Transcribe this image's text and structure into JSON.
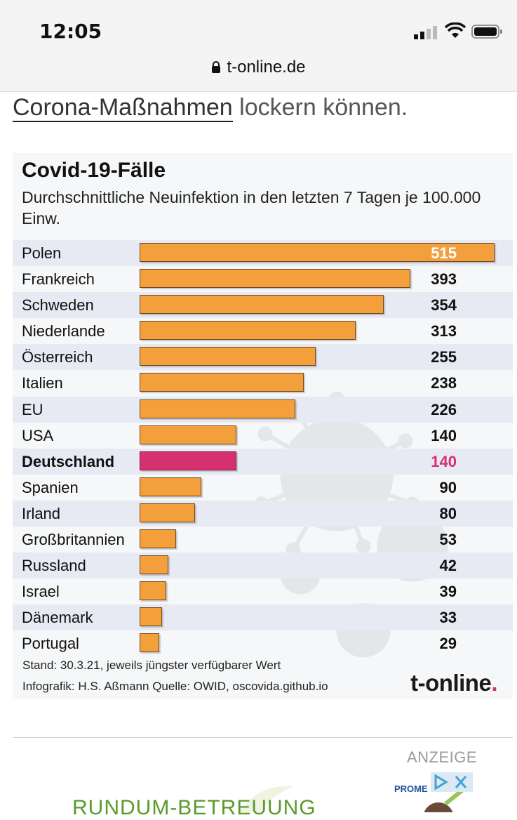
{
  "status": {
    "time": "12:05",
    "url": "t-online.de"
  },
  "article": {
    "headline_link": "Corona-Maßnahmen",
    "headline_rest": " lockern können."
  },
  "infographic": {
    "title": "Covid-19-Fälle",
    "subtitle": "Durchschnittliche Neuinfektion in den letzten 7 Tagen je 100.000 Einw.",
    "footer_stand": "Stand: 30.3.21, jeweils jüngster verfügbarer Wert",
    "footer_credit": "Infografik: H.S. Aßmann     Quelle: OWID, oscovida.github.io",
    "logo": "t-online",
    "logo_dot": ".",
    "colors": {
      "bar": "#f3a03c",
      "highlight": "#d6306f"
    }
  },
  "chart_data": {
    "type": "bar",
    "orientation": "horizontal",
    "title": "Covid-19-Fälle",
    "subtitle": "Durchschnittliche Neuinfektion in den letzten 7 Tagen je 100.000 Einw.",
    "categories": [
      "Polen",
      "Frankreich",
      "Schweden",
      "Niederlande",
      "Österreich",
      "Italien",
      "EU",
      "USA",
      "Deutschland",
      "Spanien",
      "Irland",
      "Großbritannien",
      "Russland",
      "Israel",
      "Dänemark",
      "Portugal"
    ],
    "values": [
      515,
      393,
      354,
      313,
      255,
      238,
      226,
      140,
      140,
      90,
      80,
      53,
      42,
      39,
      33,
      29
    ],
    "highlight": "Deutschland",
    "xlim": [
      0,
      515
    ]
  },
  "ad": {
    "label": "ANZEIGE",
    "brand": "PROME",
    "text": "RUNDUM-BETREUUNG"
  }
}
